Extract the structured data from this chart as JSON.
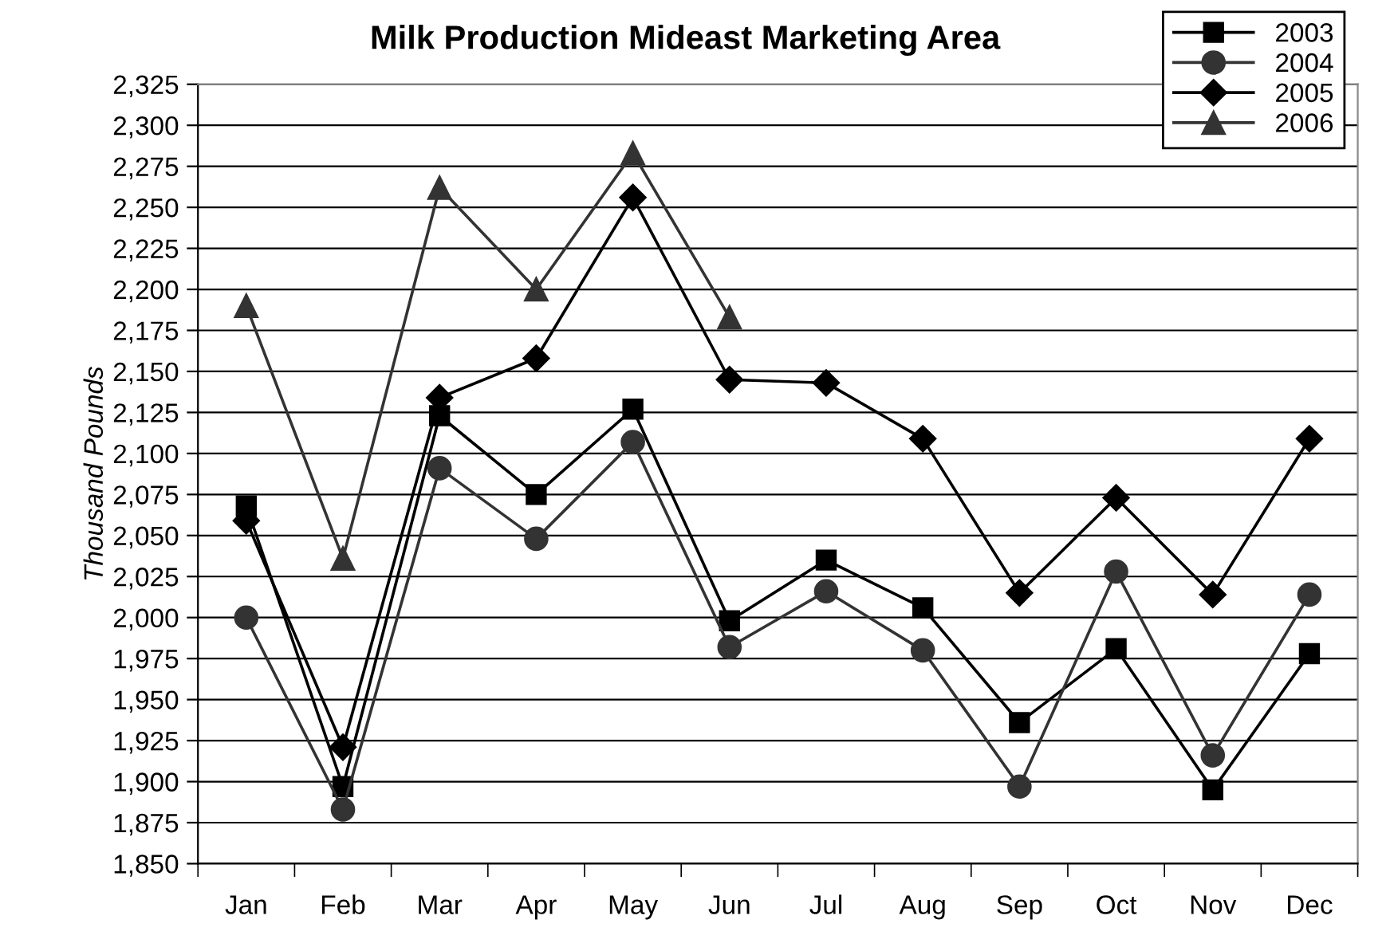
{
  "chart_data": {
    "type": "line",
    "title": "Milk Production Mideast Marketing Area",
    "ylabel": "Thousand Pounds",
    "categories": [
      "Jan",
      "Feb",
      "Mar",
      "Apr",
      "May",
      "Jun",
      "Jul",
      "Aug",
      "Sep",
      "Oct",
      "Nov",
      "Dec"
    ],
    "series": [
      {
        "name": "2003",
        "color": "#000000",
        "marker": "square",
        "values": [
          2068,
          1897,
          2123,
          2075,
          2127,
          1998,
          2035,
          2006,
          1936,
          1981,
          1895,
          1978
        ]
      },
      {
        "name": "2004",
        "color": "#333333",
        "marker": "circle",
        "values": [
          2000,
          1883,
          2091,
          2048,
          2107,
          1982,
          2016,
          1980,
          1897,
          2028,
          1916,
          2014
        ]
      },
      {
        "name": "2005",
        "color": "#000000",
        "marker": "diamond",
        "values": [
          2059,
          1921,
          2134,
          2158,
          2256,
          2145,
          2143,
          2109,
          2015,
          2073,
          2014,
          2109
        ]
      },
      {
        "name": "2006",
        "color": "#333333",
        "marker": "triangle",
        "values": [
          2190,
          2036,
          2262,
          2200,
          2283,
          2183,
          null,
          null,
          null,
          null,
          null,
          null
        ]
      }
    ],
    "ylim": [
      1850,
      2325
    ],
    "yticks": [
      {
        "value": 1850,
        "label": "1,850"
      },
      {
        "value": 1875,
        "label": "1,875"
      },
      {
        "value": 1900,
        "label": "1,900"
      },
      {
        "value": 1925,
        "label": "1,925"
      },
      {
        "value": 1950,
        "label": "1,950"
      },
      {
        "value": 1975,
        "label": "1,975"
      },
      {
        "value": 2000,
        "label": "2,000"
      },
      {
        "value": 2025,
        "label": "2,025"
      },
      {
        "value": 2050,
        "label": "2,050"
      },
      {
        "value": 2075,
        "label": "2,075"
      },
      {
        "value": 2100,
        "label": "2,100"
      },
      {
        "value": 2125,
        "label": "2,125"
      },
      {
        "value": 2150,
        "label": "2,150"
      },
      {
        "value": 2175,
        "label": "2,175"
      },
      {
        "value": 2200,
        "label": "2,200"
      },
      {
        "value": 2225,
        "label": "2,225"
      },
      {
        "value": 2250,
        "label": "2,250"
      },
      {
        "value": 2275,
        "label": "2,275"
      },
      {
        "value": 2300,
        "label": "2,300"
      },
      {
        "value": 2325,
        "label": "2,325"
      }
    ],
    "grid": "y",
    "legend": "top right",
    "line_style": "solid"
  }
}
